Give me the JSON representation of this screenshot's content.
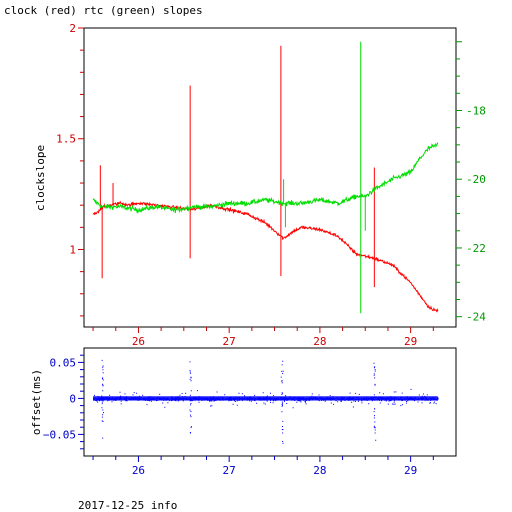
{
  "title": "clock (red) rtc (green) slopes",
  "footer": "2017-12-25 info",
  "colors": {
    "clock": "#ff0000",
    "rtc": "#00dd00",
    "offset": "#0000ff",
    "left_axis": "#cc0000",
    "right_axis": "#009900",
    "bottom_axis": "#0000cc"
  },
  "chart_data": [
    {
      "type": "line",
      "title": "clock (red) rtc (green) slopes",
      "ylabel": "clockslope",
      "xlim": [
        25.4,
        29.5
      ],
      "ylim": [
        0.65,
        2.0
      ],
      "y2lim": [
        -24.3,
        -15.6
      ],
      "x_ticks": [
        26,
        27,
        28,
        29
      ],
      "y_ticks": [
        1,
        1.5,
        2
      ],
      "y_tick_labels": [
        "1",
        "1.5",
        "2"
      ],
      "y2_ticks": [
        -24,
        -22,
        -20,
        -18
      ],
      "y2_tick_labels": [
        "-24",
        "-22",
        "-20",
        "-18"
      ],
      "series": [
        {
          "name": "clock",
          "axis": "left",
          "color": "#ff0000",
          "x": [
            25.5,
            25.55,
            25.6,
            25.7,
            25.8,
            25.9,
            26.0,
            26.2,
            26.4,
            26.6,
            26.8,
            27.0,
            27.2,
            27.4,
            27.6,
            27.7,
            27.8,
            28.0,
            28.2,
            28.4,
            28.6,
            28.8,
            29.0,
            29.2,
            29.3
          ],
          "y": [
            1.16,
            1.17,
            1.19,
            1.2,
            1.21,
            1.2,
            1.21,
            1.2,
            1.19,
            1.18,
            1.2,
            1.18,
            1.16,
            1.12,
            1.05,
            1.08,
            1.1,
            1.09,
            1.06,
            0.98,
            0.96,
            0.93,
            0.85,
            0.74,
            0.72
          ],
          "spikes": [
            [
              25.58,
              1.38
            ],
            [
              25.6,
              0.87
            ],
            [
              25.72,
              1.3
            ],
            [
              26.57,
              1.74
            ],
            [
              26.57,
              0.96
            ],
            [
              27.57,
              1.92
            ],
            [
              27.57,
              0.88
            ],
            [
              28.6,
              1.37
            ],
            [
              28.6,
              0.83
            ]
          ]
        },
        {
          "name": "rtc",
          "axis": "right",
          "color": "#00dd00",
          "x": [
            25.5,
            25.6,
            25.8,
            26.0,
            26.2,
            26.4,
            26.6,
            26.8,
            27.0,
            27.2,
            27.4,
            27.6,
            27.8,
            28.0,
            28.2,
            28.4,
            28.5,
            28.6,
            28.8,
            29.0,
            29.1,
            29.2,
            29.3
          ],
          "y": [
            -20.6,
            -20.8,
            -20.8,
            -20.9,
            -20.8,
            -20.9,
            -20.8,
            -20.8,
            -20.7,
            -20.7,
            -20.6,
            -20.7,
            -20.7,
            -20.6,
            -20.7,
            -20.5,
            -20.5,
            -20.3,
            -20.0,
            -19.8,
            -19.4,
            -19.1,
            -19.0
          ],
          "spikes": [
            [
              28.45,
              -16.0
            ],
            [
              28.45,
              -23.9
            ],
            [
              28.5,
              -21.5
            ],
            [
              27.6,
              -20.0
            ],
            [
              27.62,
              -21.4
            ]
          ]
        }
      ]
    },
    {
      "type": "scatter",
      "ylabel": "offset(ms)",
      "xlim": [
        25.4,
        29.5
      ],
      "ylim": [
        -0.08,
        0.07
      ],
      "x_ticks": [
        26,
        27,
        28,
        29
      ],
      "y_ticks": [
        -0.05,
        0,
        0.05
      ],
      "y_tick_labels": [
        "−0.05",
        "0",
        "0.05"
      ],
      "series": [
        {
          "name": "offset",
          "color": "#0000ff",
          "x_range": [
            25.5,
            29.3
          ],
          "center": 0.0,
          "spikes": [
            [
              25.6,
              0.058
            ],
            [
              25.6,
              -0.055
            ],
            [
              26.57,
              0.055
            ],
            [
              26.57,
              -0.048
            ],
            [
              27.58,
              0.06
            ],
            [
              27.58,
              -0.062
            ],
            [
              28.6,
              0.05
            ],
            [
              28.6,
              -0.058
            ]
          ]
        }
      ]
    }
  ]
}
